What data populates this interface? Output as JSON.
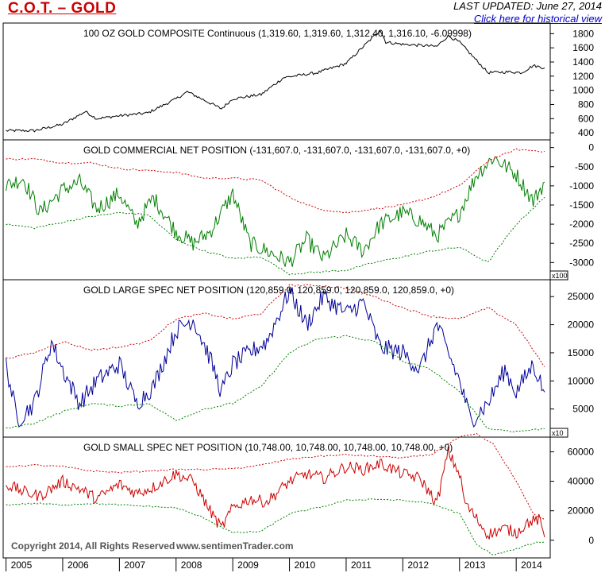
{
  "header": {
    "title": "C.O.T. – GOLD",
    "last_updated_label": "LAST UPDATED:",
    "last_updated_date": "June 27, 2014",
    "historical_link": "Click here for historical view"
  },
  "footer": {
    "copyright": "Copyright 2014, All Rights Reserved",
    "site": "www.sentimenTrader.com"
  },
  "colors": {
    "price": "#000000",
    "commercial": "#008000",
    "large_spec": "#000099",
    "small_spec": "#cc0000",
    "upper_band": "#cc0000",
    "lower_band": "#008000",
    "grid": "#000000"
  },
  "chart_data": [
    {
      "type": "line",
      "title": "100 OZ GOLD COMPOSITE Continuous (1,319.60, 1,319.60, 1,312.40, 1,316.10, -6.09998)",
      "ylim": [
        300,
        1950
      ],
      "yticks": [
        400,
        600,
        800,
        1000,
        1200,
        1400,
        1600,
        1800
      ],
      "multiplier": "",
      "series": [
        {
          "role": "price",
          "x": [
            2005.0,
            2005.5,
            2006.0,
            2006.4,
            2006.6,
            2007.0,
            2007.5,
            2008.0,
            2008.2,
            2008.8,
            2009.0,
            2009.5,
            2009.9,
            2010.5,
            2011.0,
            2011.6,
            2011.7,
            2012.0,
            2012.6,
            2012.8,
            2013.0,
            2013.5,
            2013.9,
            2014.1,
            2014.3,
            2014.5
          ],
          "y": [
            430,
            430,
            520,
            700,
            600,
            640,
            680,
            880,
            980,
            740,
            880,
            940,
            1180,
            1250,
            1380,
            1850,
            1680,
            1650,
            1620,
            1770,
            1680,
            1250,
            1260,
            1250,
            1350,
            1316
          ]
        }
      ]
    },
    {
      "type": "line",
      "title": "GOLD COMMERCIAL NET POSITION (-131,607.0, -131,607.0, -131,607.0, -131,607.0, +0)",
      "ylim": [
        -3450,
        200
      ],
      "yticks": [
        -3000,
        -2500,
        -2000,
        -1500,
        -1000,
        -500,
        0
      ],
      "multiplier": "x100",
      "series": [
        {
          "role": "net",
          "x": [
            2005.0,
            2005.3,
            2005.6,
            2006.0,
            2006.3,
            2006.6,
            2007.0,
            2007.3,
            2007.6,
            2008.0,
            2008.3,
            2008.6,
            2009.0,
            2009.3,
            2009.6,
            2010.0,
            2010.3,
            2010.6,
            2011.0,
            2011.3,
            2011.6,
            2012.0,
            2012.3,
            2012.6,
            2013.0,
            2013.3,
            2013.6,
            2014.0,
            2014.3,
            2014.5
          ],
          "y": [
            -1000,
            -800,
            -1700,
            -1100,
            -900,
            -1600,
            -1200,
            -2000,
            -1300,
            -2200,
            -2500,
            -2200,
            -1200,
            -2500,
            -2700,
            -3000,
            -2400,
            -2900,
            -2300,
            -2700,
            -2000,
            -1700,
            -1900,
            -2300,
            -1700,
            -700,
            -250,
            -700,
            -1400,
            -900
          ]
        },
        {
          "role": "upper",
          "x": [
            2005.0,
            2005.5,
            2006.0,
            2006.5,
            2007.0,
            2007.5,
            2008.0,
            2008.5,
            2009.0,
            2009.5,
            2010.0,
            2010.5,
            2011.0,
            2011.5,
            2012.0,
            2012.5,
            2013.0,
            2013.5,
            2014.0,
            2014.5
          ],
          "y": [
            -300,
            -300,
            -400,
            -400,
            -550,
            -600,
            -650,
            -800,
            -800,
            -850,
            -1300,
            -1600,
            -1700,
            -1600,
            -1500,
            -1300,
            -1000,
            -350,
            -50,
            -100
          ]
        },
        {
          "role": "lower",
          "x": [
            2005.0,
            2005.5,
            2006.0,
            2006.5,
            2007.0,
            2007.5,
            2008.0,
            2008.5,
            2009.0,
            2009.5,
            2010.0,
            2010.5,
            2011.0,
            2011.5,
            2012.0,
            2012.5,
            2013.0,
            2013.5,
            2014.0,
            2014.5
          ],
          "y": [
            -2000,
            -2100,
            -1950,
            -1800,
            -1700,
            -1750,
            -2400,
            -2700,
            -2900,
            -2850,
            -3300,
            -3250,
            -3200,
            -3000,
            -2850,
            -2700,
            -2600,
            -3000,
            -2000,
            -1300
          ]
        }
      ]
    },
    {
      "type": "line",
      "title": "GOLD LARGE SPEC NET POSITION (120,859.0, 120,859.0, 120,859.0, 120,859.0, +0)",
      "ylim": [
        0,
        28000
      ],
      "yticks": [
        5000,
        10000,
        15000,
        20000,
        25000
      ],
      "multiplier": "x10",
      "series": [
        {
          "role": "net",
          "x": [
            2005.0,
            2005.2,
            2005.5,
            2005.8,
            2006.0,
            2006.3,
            2006.6,
            2007.0,
            2007.3,
            2007.6,
            2008.0,
            2008.3,
            2008.6,
            2008.8,
            2009.0,
            2009.3,
            2009.6,
            2010.0,
            2010.3,
            2010.6,
            2011.0,
            2011.3,
            2011.6,
            2012.0,
            2012.3,
            2012.6,
            2013.0,
            2013.2,
            2013.5,
            2013.8,
            2014.0,
            2014.3,
            2014.5
          ],
          "y": [
            13000,
            3000,
            6000,
            17000,
            12000,
            6000,
            10000,
            13000,
            6000,
            9000,
            19000,
            21000,
            14000,
            8000,
            13000,
            15000,
            17000,
            26000,
            20000,
            25000,
            22000,
            24000,
            16000,
            15000,
            12000,
            20000,
            10000,
            3000,
            6000,
            12000,
            8000,
            13000,
            8000
          ]
        },
        {
          "role": "upper",
          "x": [
            2005.0,
            2005.5,
            2006.0,
            2006.5,
            2007.0,
            2007.5,
            2008.0,
            2008.5,
            2009.0,
            2009.5,
            2010.0,
            2010.5,
            2011.0,
            2011.5,
            2012.0,
            2012.5,
            2013.0,
            2013.5,
            2014.0,
            2014.5
          ],
          "y": [
            14000,
            15000,
            17000,
            15500,
            16000,
            17000,
            21000,
            22000,
            21000,
            22000,
            27000,
            27000,
            26500,
            25000,
            23000,
            21500,
            21000,
            23000,
            20000,
            12500
          ]
        },
        {
          "role": "lower",
          "x": [
            2005.0,
            2005.5,
            2006.0,
            2006.5,
            2007.0,
            2007.5,
            2008.0,
            2008.5,
            2009.0,
            2009.5,
            2010.0,
            2010.5,
            2011.0,
            2011.5,
            2012.0,
            2012.5,
            2013.0,
            2013.5,
            2014.0,
            2014.5
          ],
          "y": [
            1500,
            2500,
            4500,
            6000,
            5500,
            6000,
            3000,
            5000,
            6000,
            9000,
            15000,
            17500,
            18000,
            17000,
            13500,
            12000,
            8000,
            1500,
            1000,
            1500
          ]
        }
      ]
    },
    {
      "type": "line",
      "title": "GOLD SMALL SPEC NET POSITION (10,748.00, 10,748.00, 10,748.00, 10,748.00, +0)",
      "ylim": [
        -12000,
        70000
      ],
      "yticks": [
        0,
        20000,
        40000,
        60000
      ],
      "multiplier": "",
      "series": [
        {
          "role": "net",
          "x": [
            2005.0,
            2005.3,
            2005.6,
            2006.0,
            2006.3,
            2006.6,
            2007.0,
            2007.3,
            2007.6,
            2008.0,
            2008.3,
            2008.6,
            2008.8,
            2009.0,
            2009.3,
            2009.6,
            2010.0,
            2010.3,
            2010.6,
            2011.0,
            2011.3,
            2011.6,
            2012.0,
            2012.3,
            2012.6,
            2012.8,
            2013.0,
            2013.1,
            2013.5,
            2013.8,
            2014.0,
            2014.2,
            2014.4,
            2014.5
          ],
          "y": [
            38000,
            33000,
            30000,
            40000,
            35000,
            28000,
            38000,
            32000,
            36000,
            45000,
            40000,
            20000,
            8000,
            22000,
            28000,
            26000,
            40000,
            45000,
            42000,
            50000,
            48000,
            52000,
            45000,
            42000,
            25000,
            60000,
            45000,
            25000,
            4000,
            8000,
            5000,
            12000,
            14000,
            2000
          ]
        },
        {
          "role": "upper",
          "x": [
            2005.0,
            2005.5,
            2006.0,
            2006.5,
            2007.0,
            2007.5,
            2008.0,
            2008.5,
            2009.0,
            2009.5,
            2010.0,
            2010.5,
            2011.0,
            2011.5,
            2012.0,
            2012.5,
            2013.0,
            2013.3,
            2013.6,
            2014.0,
            2014.3,
            2014.5
          ],
          "y": [
            50000,
            51000,
            50000,
            47000,
            46000,
            47000,
            48000,
            48000,
            48500,
            51000,
            55000,
            57000,
            58000,
            57000,
            56000,
            58000,
            70000,
            72000,
            65000,
            40000,
            18000,
            14000
          ]
        },
        {
          "role": "lower",
          "x": [
            2005.0,
            2005.5,
            2006.0,
            2006.5,
            2007.0,
            2007.5,
            2008.0,
            2008.5,
            2009.0,
            2009.5,
            2010.0,
            2010.5,
            2011.0,
            2011.5,
            2012.0,
            2012.5,
            2013.0,
            2013.3,
            2013.6,
            2014.0,
            2014.3,
            2014.5
          ],
          "y": [
            24000,
            25000,
            24000,
            25000,
            24000,
            23000,
            22000,
            15000,
            5000,
            6000,
            18000,
            22000,
            27000,
            28000,
            27000,
            25000,
            18000,
            -3000,
            -10000,
            -6000,
            -2000,
            -1000
          ]
        }
      ]
    }
  ],
  "x_axis": {
    "years": [
      "2005",
      "2006",
      "2007",
      "2008",
      "2009",
      "2010",
      "2011",
      "2012",
      "2013",
      "2014"
    ],
    "xlim": [
      2004.95,
      2014.6
    ]
  }
}
